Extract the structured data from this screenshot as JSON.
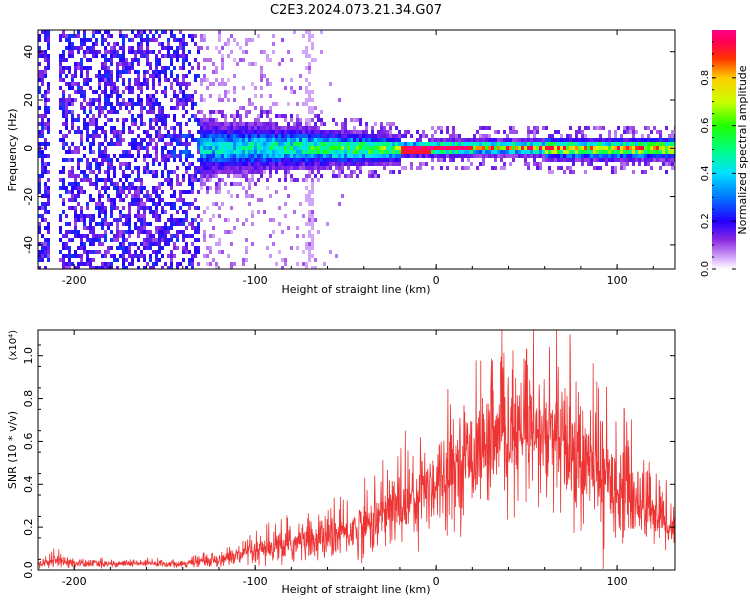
{
  "title": "C2E3.2024.073.21.34.G07",
  "chart_data": [
    {
      "type": "heatmap",
      "xlabel": "Height of straight line (km)",
      "ylabel": "Frequency (Hz)",
      "xlim": [
        -220,
        132
      ],
      "ylim": [
        -50,
        49
      ],
      "x_ticks": [
        -200,
        -100,
        0,
        100
      ],
      "y_ticks": [
        -40,
        -20,
        0,
        20,
        40
      ],
      "colorbar": {
        "label": "Normalized spectral amplitude",
        "range": [
          0.0,
          1.0
        ],
        "ticks": [
          "0.0",
          "0.2",
          "0.4",
          "0.6",
          "0.8"
        ],
        "tick_values": [
          0.0,
          0.2,
          0.4,
          0.6,
          0.8
        ],
        "colormap": "rainbow (violet-blue-cyan-green-yellow-red-magenta)"
      },
      "description_regions": [
        {
          "x_range": [
            -220,
            -130
          ],
          "freq_spread": [
            -50,
            49
          ],
          "amplitude": [
            0.1,
            0.25
          ]
        },
        {
          "x_range": [
            -130,
            -20
          ],
          "freq_spread": [
            -12,
            10
          ],
          "amplitude": [
            0.2,
            0.6
          ]
        },
        {
          "x_range": [
            -20,
            132
          ],
          "freq_spread": [
            -5,
            5
          ],
          "amplitude": [
            0.5,
            1.0
          ],
          "peak_freq": 0
        }
      ]
    },
    {
      "type": "line",
      "xlabel": "Height of straight line (km)",
      "ylabel": "SNR (10 * v/v)",
      "y_multiplier": "(x10⁴)",
      "xlim": [
        -220,
        132
      ],
      "ylim": [
        0.0,
        1.12
      ],
      "x_ticks": [
        -200,
        -100,
        0,
        100
      ],
      "y_ticks": [
        0.0,
        0.2,
        0.4,
        0.6,
        0.8,
        1.0
      ],
      "y_tick_labels": [
        "0.0",
        "0.2",
        "0.4",
        "0.6",
        "0.8",
        "1.0"
      ],
      "series": [
        {
          "color": "#ee3333",
          "envelope_x": [
            -220,
            -210,
            -200,
            -180,
            -160,
            -140,
            -120,
            -100,
            -80,
            -60,
            -40,
            -20,
            0,
            20,
            40,
            60,
            70,
            80,
            100,
            120,
            132
          ],
          "envelope_mean": [
            0.03,
            0.05,
            0.03,
            0.03,
            0.03,
            0.03,
            0.05,
            0.08,
            0.12,
            0.15,
            0.2,
            0.3,
            0.42,
            0.55,
            0.62,
            0.62,
            0.58,
            0.5,
            0.4,
            0.28,
            0.2
          ],
          "envelope_spread": [
            0.02,
            0.03,
            0.02,
            0.015,
            0.015,
            0.015,
            0.03,
            0.06,
            0.08,
            0.09,
            0.12,
            0.17,
            0.2,
            0.22,
            0.25,
            0.28,
            0.3,
            0.27,
            0.22,
            0.15,
            0.12
          ],
          "peaks": [
            {
              "x": 50,
              "y": 1.03
            },
            {
              "x": 74,
              "y": 1.1
            },
            {
              "x": -17,
              "y": 0.65
            }
          ]
        }
      ]
    }
  ]
}
